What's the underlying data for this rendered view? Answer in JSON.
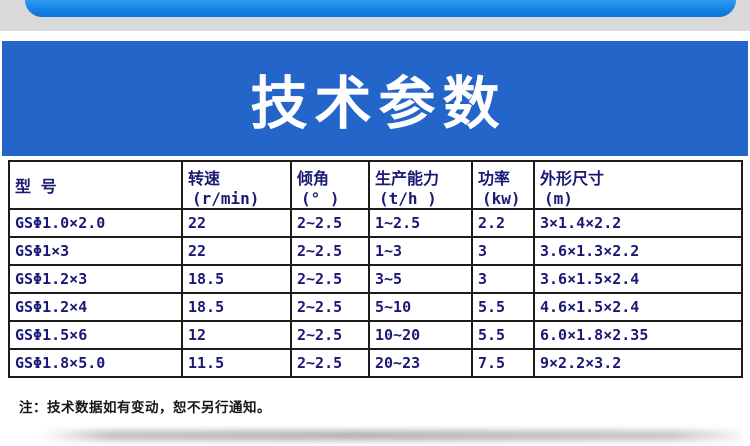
{
  "title": {
    "text": "技术参数"
  },
  "table": {
    "columns": [
      {
        "label": "型 号",
        "unit": ""
      },
      {
        "label": "转速",
        "unit": "(r/min)"
      },
      {
        "label": "倾角",
        "unit": "(° )"
      },
      {
        "label": "生产能力",
        "unit": "(t/h )"
      },
      {
        "label": "功率",
        "unit": "(kw)"
      },
      {
        "label": "外形尺寸",
        "unit": "(m)"
      }
    ],
    "rows": [
      [
        "GSΦ1.0×2.0",
        "22",
        "2~2.5",
        "1~2.5",
        "2.2",
        "3×1.4×2.2"
      ],
      [
        "GSΦ1×3",
        "22",
        "2~2.5",
        "1~3",
        "3",
        "3.6×1.3×2.2"
      ],
      [
        "GSΦ1.2×3",
        "18.5",
        "2~2.5",
        "3~5",
        "3",
        "3.6×1.5×2.4"
      ],
      [
        "GSΦ1.2×4",
        "18.5",
        "2~2.5",
        "5~10",
        "5.5",
        "4.6×1.5×2.4"
      ],
      [
        "GSΦ1.5×6",
        "12",
        "2~2.5",
        "10~20",
        "5.5",
        "6.0×1.8×2.35"
      ],
      [
        "GSΦ1.8×5.0",
        "11.5",
        "2~2.5",
        "20~23",
        "7.5",
        "9×2.2×3.2"
      ]
    ]
  },
  "note": {
    "text": "注：技术数据如有变动，恕不另行通知。"
  },
  "colors": {
    "top_banner_gradient_top": "#2f9aef",
    "top_banner_gradient_bottom": "#0b72d8",
    "top_strip_gray": "#d9d9d9",
    "title_banner_blue": "#2365c8",
    "title_text": "#ffffff",
    "table_text_navy": "#1a1a75",
    "table_border": "#1c1c1c",
    "note_text": "#161616"
  }
}
